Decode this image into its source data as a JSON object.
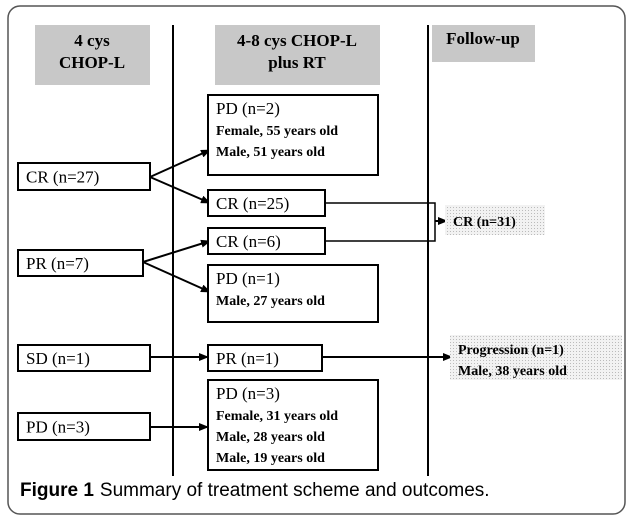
{
  "columns": [
    {
      "lines": [
        "4 cys",
        "CHOP-L"
      ]
    },
    {
      "lines": [
        "4-8 cys CHOP-L",
        "plus RT"
      ]
    },
    {
      "lines": [
        "Follow-up"
      ]
    }
  ],
  "nodes": [
    {
      "lines": [
        "CR (n=27)"
      ]
    },
    {
      "lines": [
        "PR (n=7)"
      ]
    },
    {
      "lines": [
        "SD (n=1)"
      ]
    },
    {
      "lines": [
        "PD (n=3)"
      ]
    },
    {
      "lines": [
        "PD (n=2)",
        "Female, 55 years old",
        "Male, 51 years old"
      ]
    },
    {
      "lines": [
        "CR (n=25)"
      ]
    },
    {
      "lines": [
        "CR (n=6)"
      ]
    },
    {
      "lines": [
        "PD (n=1)",
        "Male, 27 years old"
      ]
    },
    {
      "lines": [
        "PR (n=1)"
      ]
    },
    {
      "lines": [
        "PD (n=3)",
        "Female, 31 years old",
        "Male, 28 years old",
        "Male, 19 years old"
      ]
    },
    {
      "lines": [
        "CR (n=31)"
      ]
    },
    {
      "lines": [
        "Progression (n=1)",
        "Male, 38 years old"
      ]
    }
  ],
  "caption": {
    "label": "Figure 1",
    "text": "Summary of treatment scheme and outcomes."
  }
}
